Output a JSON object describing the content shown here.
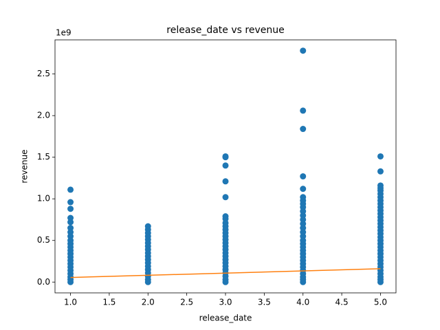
{
  "chart_data": {
    "type": "scatter",
    "title": "release_date vs revenue",
    "x_label": "release_date",
    "y_label": "revenue",
    "y_offset_label": "1e9",
    "xlim": [
      0.8,
      5.2
    ],
    "ylim": [
      -0.13,
      2.91
    ],
    "xticks": [
      {
        "value": 1,
        "label": "1.0"
      },
      1.5,
      {
        "value": 2,
        "label": "2.0"
      },
      2.5,
      {
        "value": 3,
        "label": "3.0"
      },
      3.5,
      {
        "value": 4,
        "label": "4.0"
      },
      4.5,
      {
        "value": 5,
        "label": "5.0"
      }
    ],
    "yticks": [
      {
        "value": 0,
        "label": "0.0"
      },
      0.5,
      {
        "value": 1,
        "label": "1.0"
      },
      1.5,
      {
        "value": 2,
        "label": "2.0"
      },
      2.5
    ],
    "grid": false,
    "series": [
      {
        "color": "#1f77b4",
        "mode": "markers",
        "x": [
          1,
          1,
          1,
          1,
          1,
          1,
          1,
          1,
          1,
          1,
          1,
          1,
          1,
          1,
          1,
          1,
          1,
          1,
          1,
          1,
          1,
          1,
          2,
          2,
          2,
          2,
          2,
          2,
          2,
          2,
          2,
          2,
          2,
          2,
          2,
          2,
          2,
          2,
          2,
          2,
          3,
          3,
          3,
          3,
          3,
          3,
          3,
          3,
          3,
          3,
          3,
          3,
          3,
          3,
          3,
          3,
          3,
          3,
          3,
          3,
          3,
          3,
          3,
          3,
          3,
          3,
          4,
          4,
          4,
          4,
          4,
          4,
          4,
          4,
          4,
          4,
          4,
          4,
          4,
          4,
          4,
          4,
          4,
          4,
          4,
          4,
          4,
          4,
          4,
          4,
          4,
          4,
          4,
          4,
          4,
          4,
          5,
          5,
          5,
          5,
          5,
          5,
          5,
          5,
          5,
          5,
          5,
          5,
          5,
          5,
          5,
          5,
          5,
          5,
          5,
          5,
          5,
          5,
          5,
          5,
          5,
          5,
          5,
          5,
          5,
          5,
          5,
          5,
          5
        ],
        "values": [
          1.11,
          0.96,
          0.88,
          0.77,
          0.72,
          0.65,
          0.6,
          0.55,
          0.5,
          0.46,
          0.42,
          0.38,
          0.34,
          0.3,
          0.26,
          0.22,
          0.18,
          0.14,
          0.1,
          0.06,
          0.03,
          0.0,
          0.67,
          0.63,
          0.59,
          0.55,
          0.51,
          0.47,
          0.43,
          0.39,
          0.35,
          0.31,
          0.27,
          0.23,
          0.19,
          0.15,
          0.11,
          0.07,
          0.03,
          0.0,
          1.51,
          1.5,
          1.4,
          1.21,
          1.02,
          0.79,
          0.76,
          0.71,
          0.67,
          0.63,
          0.59,
          0.55,
          0.51,
          0.47,
          0.43,
          0.39,
          0.35,
          0.31,
          0.27,
          0.23,
          0.19,
          0.15,
          0.11,
          0.07,
          0.03,
          0.0,
          2.78,
          2.06,
          1.84,
          1.27,
          1.12,
          1.02,
          0.98,
          0.94,
          0.9,
          0.85,
          0.8,
          0.75,
          0.7,
          0.65,
          0.6,
          0.55,
          0.5,
          0.46,
          0.42,
          0.38,
          0.34,
          0.3,
          0.26,
          0.22,
          0.18,
          0.14,
          0.1,
          0.06,
          0.03,
          0.0,
          1.51,
          1.33,
          1.16,
          1.13,
          1.1,
          1.06,
          1.02,
          0.98,
          0.94,
          0.9,
          0.86,
          0.82,
          0.78,
          0.74,
          0.7,
          0.66,
          0.62,
          0.58,
          0.54,
          0.5,
          0.46,
          0.42,
          0.38,
          0.34,
          0.3,
          0.26,
          0.22,
          0.18,
          0.14,
          0.1,
          0.06,
          0.03,
          0.0
        ]
      },
      {
        "color": "#ff7f0e",
        "mode": "line",
        "x": [
          1,
          5
        ],
        "values": [
          0.055,
          0.16
        ]
      }
    ]
  }
}
